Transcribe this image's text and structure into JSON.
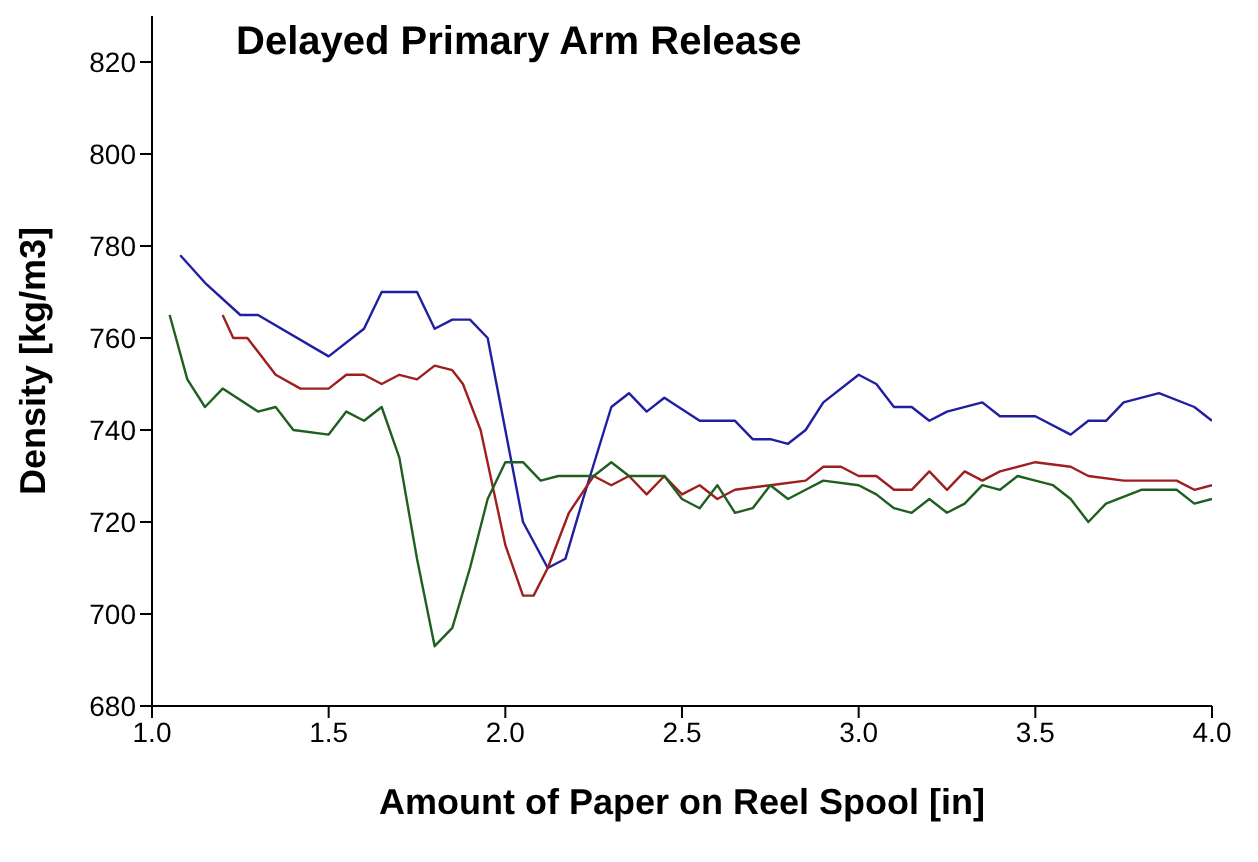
{
  "chart_data": {
    "type": "line",
    "title": "Delayed Primary Arm Release",
    "xlabel": "Amount of Paper on Reel Spool [in]",
    "ylabel": "Density [kg/m3]",
    "xlim": [
      1.0,
      4.0
    ],
    "xticks": [
      {
        "value": 1.0,
        "label": "1.0"
      },
      {
        "value": 1.5,
        "label": "1.5"
      },
      {
        "value": 2.0,
        "label": "2.0"
      },
      {
        "value": 2.5,
        "label": "2.5"
      },
      {
        "value": 3.0,
        "label": "3.0"
      },
      {
        "value": 3.5,
        "label": "3.5"
      },
      {
        "value": 4.0,
        "label": "4.0"
      }
    ],
    "ylim": [
      680,
      830
    ],
    "yticks": [
      680,
      700,
      720,
      740,
      760,
      780,
      800,
      820
    ],
    "marker": "none",
    "line_style": "solid",
    "series": [
      {
        "color": "#1f1f9f",
        "x": [
          1.08,
          1.15,
          1.25,
          1.3,
          1.5,
          1.6,
          1.65,
          1.75,
          1.8,
          1.85,
          1.9,
          1.95,
          2.0,
          2.05,
          2.12,
          2.17,
          2.22,
          2.3,
          2.35,
          2.4,
          2.45,
          2.55,
          2.65,
          2.7,
          2.75,
          2.8,
          2.85,
          2.9,
          3.0,
          3.05,
          3.1,
          3.15,
          3.2,
          3.25,
          3.35,
          3.4,
          3.5,
          3.6,
          3.65,
          3.7,
          3.75,
          3.85,
          3.95,
          4.0
        ],
        "values": [
          778,
          772,
          765,
          765,
          756,
          762,
          770,
          770,
          762,
          764,
          764,
          760,
          740,
          720,
          710,
          712,
          725,
          745,
          748,
          744,
          747,
          742,
          742,
          738,
          738,
          737,
          740,
          746,
          752,
          750,
          745,
          745,
          742,
          744,
          746,
          743,
          743,
          739,
          742,
          742,
          746,
          748,
          745,
          742
        ]
      },
      {
        "color": "#9f1f1f",
        "x": [
          1.2,
          1.23,
          1.27,
          1.35,
          1.42,
          1.5,
          1.55,
          1.6,
          1.65,
          1.7,
          1.75,
          1.8,
          1.85,
          1.88,
          1.93,
          2.0,
          2.05,
          2.08,
          2.12,
          2.18,
          2.25,
          2.3,
          2.35,
          2.4,
          2.45,
          2.5,
          2.55,
          2.6,
          2.65,
          2.75,
          2.85,
          2.9,
          2.95,
          3.0,
          3.05,
          3.1,
          3.15,
          3.2,
          3.25,
          3.3,
          3.35,
          3.4,
          3.5,
          3.6,
          3.65,
          3.75,
          3.9,
          3.95,
          4.0
        ],
        "values": [
          765,
          760,
          760,
          752,
          749,
          749,
          752,
          752,
          750,
          752,
          751,
          754,
          753,
          750,
          740,
          715,
          704,
          704,
          710,
          722,
          730,
          728,
          730,
          726,
          730,
          726,
          728,
          725,
          727,
          728,
          729,
          732,
          732,
          730,
          730,
          727,
          727,
          731,
          727,
          731,
          729,
          731,
          733,
          732,
          730,
          729,
          729,
          727,
          728
        ]
      },
      {
        "color": "#1f5f1f",
        "x": [
          1.05,
          1.1,
          1.15,
          1.2,
          1.3,
          1.35,
          1.4,
          1.5,
          1.55,
          1.6,
          1.65,
          1.7,
          1.75,
          1.8,
          1.85,
          1.9,
          1.95,
          2.0,
          2.05,
          2.1,
          2.15,
          2.25,
          2.3,
          2.35,
          2.45,
          2.5,
          2.55,
          2.6,
          2.65,
          2.7,
          2.75,
          2.8,
          2.85,
          2.9,
          3.0,
          3.05,
          3.1,
          3.15,
          3.2,
          3.25,
          3.3,
          3.35,
          3.4,
          3.45,
          3.5,
          3.55,
          3.6,
          3.65,
          3.7,
          3.8,
          3.9,
          3.95,
          4.0
        ],
        "values": [
          765,
          751,
          745,
          749,
          744,
          745,
          740,
          739,
          744,
          742,
          745,
          734,
          712,
          693,
          697,
          710,
          725,
          733,
          733,
          729,
          730,
          730,
          733,
          730,
          730,
          725,
          723,
          728,
          722,
          723,
          728,
          725,
          727,
          729,
          728,
          726,
          723,
          722,
          725,
          722,
          724,
          728,
          727,
          730,
          729,
          728,
          725,
          720,
          724,
          727,
          727,
          724,
          725
        ]
      }
    ]
  }
}
